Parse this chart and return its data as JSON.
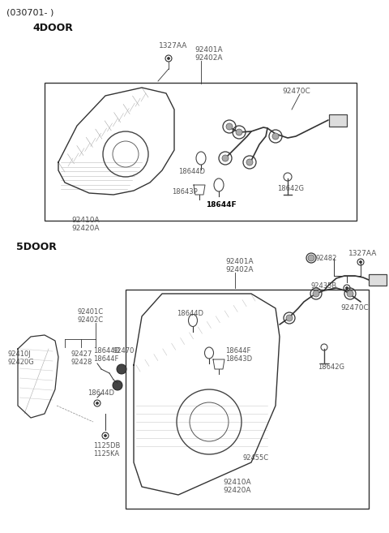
{
  "bg_color": "#ffffff",
  "title_text": "(030701- )",
  "section1_label": "4DOOR",
  "section2_label": "5DOOR",
  "fig_width": 4.8,
  "fig_height": 6.57,
  "dpi": 100,
  "line_color": "#333333",
  "label_color": "#555555"
}
